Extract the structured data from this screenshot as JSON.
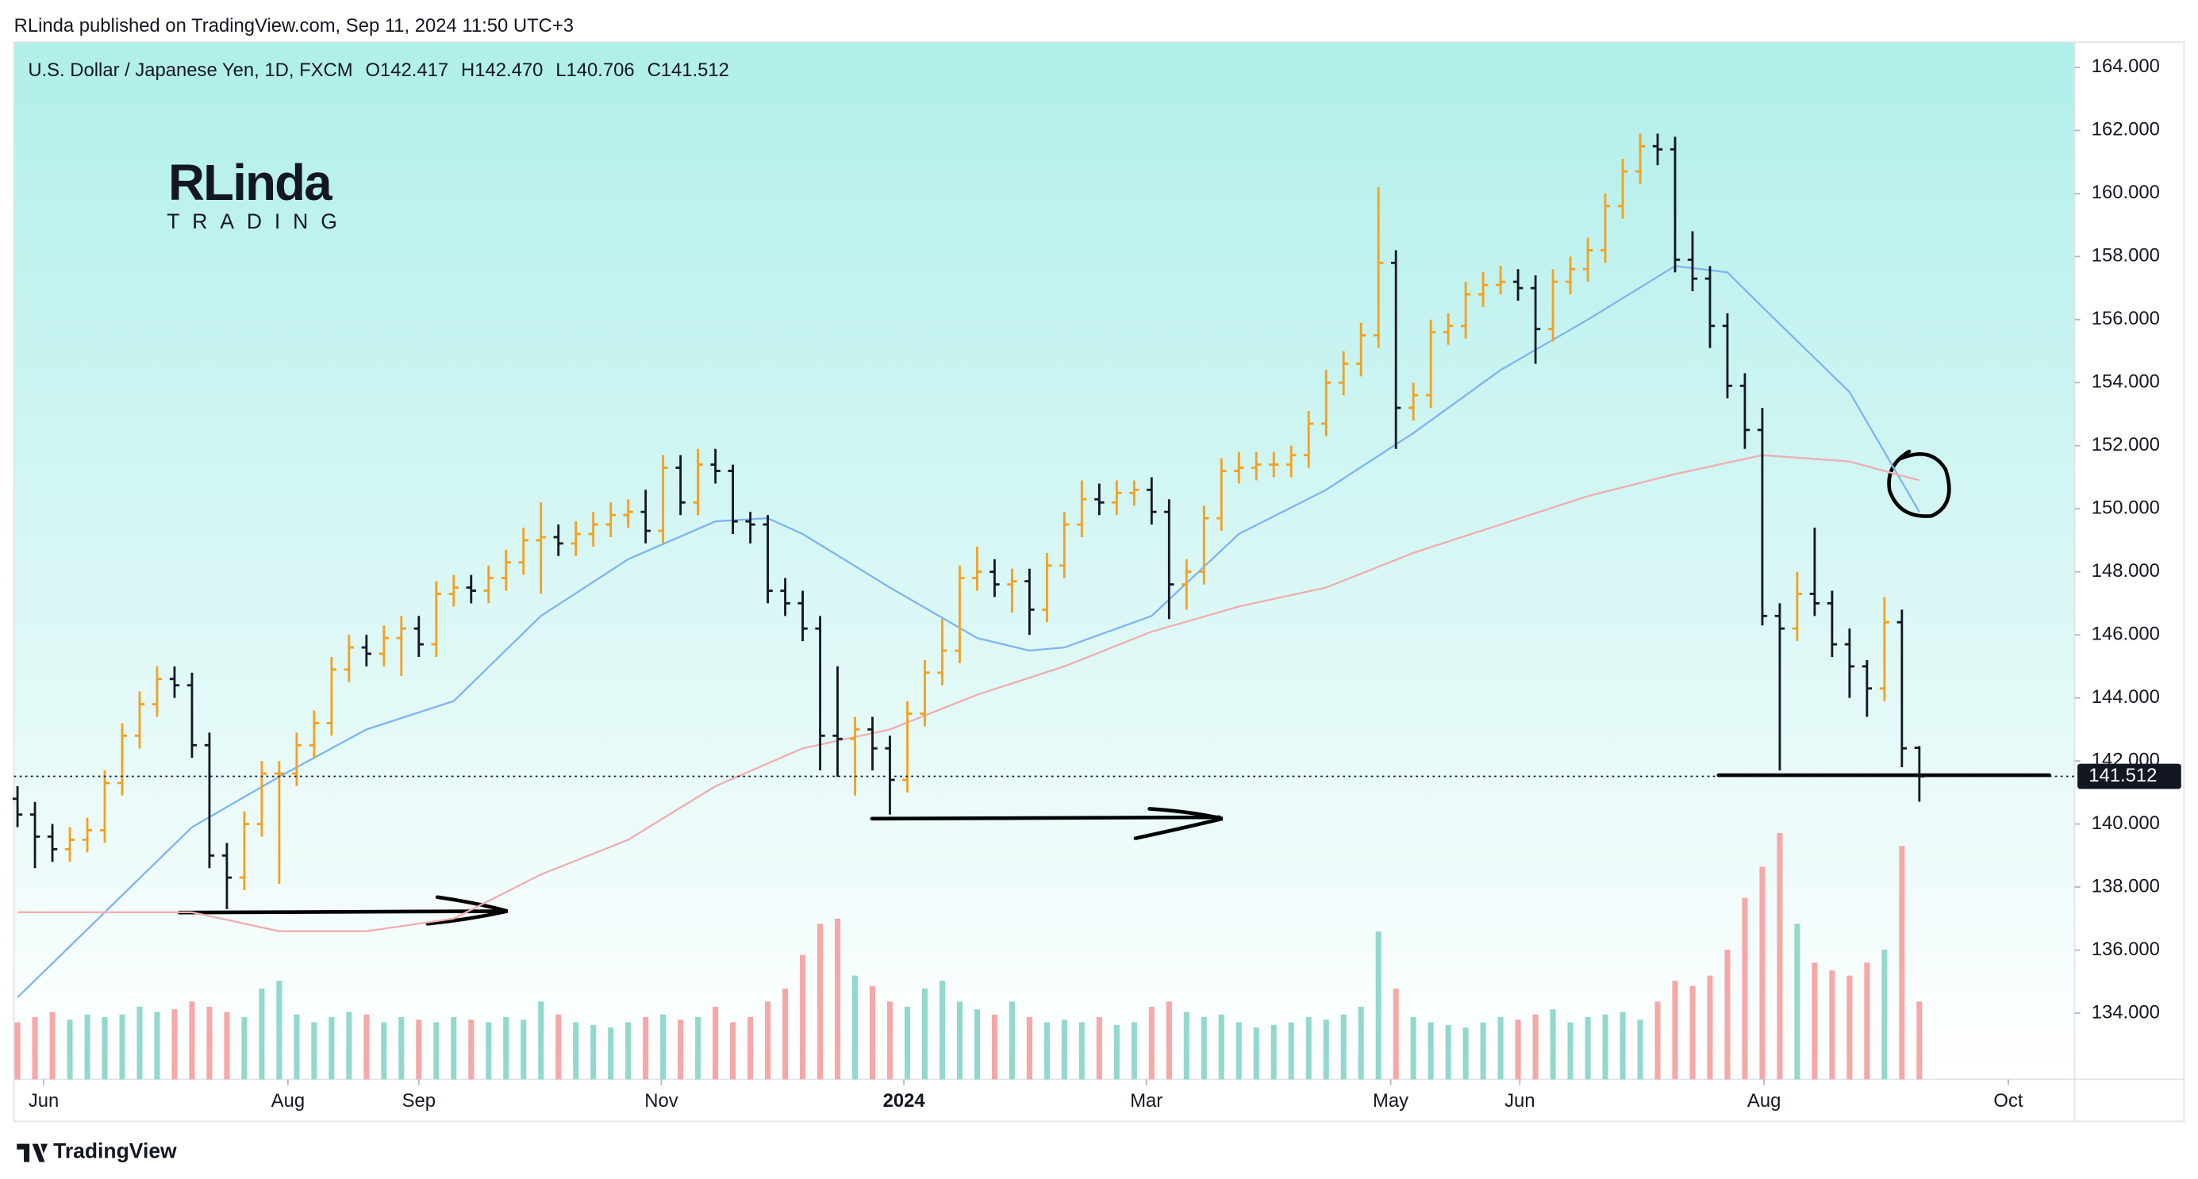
{
  "chart_data": {
    "type": "ohlc",
    "attribution": "RLinda published on TradingView.com, Sep 11, 2024 11:50 UTC+3",
    "symbol": "U.S. Dollar / Japanese Yen, 1D, FXCM",
    "legend_values": [
      "O142.417",
      "H142.470",
      "L140.706",
      "C141.512"
    ],
    "logo": [
      "RLinda",
      "TRADING"
    ],
    "footer": "TradingView",
    "up_color": "#f5a01f",
    "down_color": "#131722",
    "volume_up_color": "#93d8cc",
    "volume_down_color": "#f6a7a7",
    "xlim": [
      -0.2,
      117.9
    ],
    "xticks": [
      {
        "value": 1.5,
        "label": "Jun"
      },
      {
        "value": 15.5,
        "label": "Aug"
      },
      {
        "value": 23.0,
        "label": "Sep"
      },
      {
        "value": 36.9,
        "label": "Nov"
      },
      {
        "value": 50.8,
        "label": "2024"
      },
      {
        "value": 64.7,
        "label": "Mar"
      },
      {
        "value": 78.7,
        "label": "May"
      },
      {
        "value": 86.1,
        "label": "Jun"
      },
      {
        "value": 100.1,
        "label": "Aug"
      },
      {
        "value": 114.1,
        "label": "Oct"
      }
    ],
    "ylim": [
      131.9,
      164.8
    ],
    "yticks": [
      {
        "value": 134,
        "label": "134.000"
      },
      {
        "value": 136,
        "label": "136.000"
      },
      {
        "value": 138,
        "label": "138.000"
      },
      {
        "value": 140,
        "label": "140.000"
      },
      {
        "value": 142,
        "label": "142.000"
      },
      {
        "value": 144,
        "label": "144.000"
      },
      {
        "value": 146,
        "label": "146.000"
      },
      {
        "value": 148,
        "label": "148.000"
      },
      {
        "value": 150,
        "label": "150.000"
      },
      {
        "value": 152,
        "label": "152.000"
      },
      {
        "value": 154,
        "label": "154.000"
      },
      {
        "value": 156,
        "label": "156.000"
      },
      {
        "value": 158,
        "label": "158.000"
      },
      {
        "value": 160,
        "label": "160.000"
      },
      {
        "value": 162,
        "label": "162.000"
      },
      {
        "value": 164,
        "label": "164.000"
      }
    ],
    "last_price": {
      "value": 141.512,
      "label": "141.512"
    },
    "candles": [
      [
        140.8,
        141.2,
        139.9,
        140.3
      ],
      [
        140.3,
        140.7,
        138.6,
        139.6
      ],
      [
        139.6,
        140.0,
        138.8,
        139.2
      ],
      [
        139.2,
        139.9,
        138.8,
        139.5
      ],
      [
        139.5,
        140.2,
        139.1,
        139.8
      ],
      [
        139.8,
        141.7,
        139.4,
        141.3
      ],
      [
        141.3,
        143.2,
        140.9,
        142.8
      ],
      [
        142.8,
        144.2,
        142.4,
        143.8
      ],
      [
        143.8,
        145.0,
        143.4,
        144.6
      ],
      [
        144.6,
        145.0,
        144.0,
        144.4
      ],
      [
        144.4,
        144.8,
        142.1,
        142.5
      ],
      [
        142.5,
        142.9,
        138.6,
        139.0
      ],
      [
        139.0,
        139.4,
        137.3,
        138.3
      ],
      [
        138.3,
        140.4,
        137.9,
        140.0
      ],
      [
        140.0,
        142.0,
        139.6,
        141.6
      ],
      [
        141.6,
        142.0,
        138.1,
        141.6
      ],
      [
        141.6,
        142.9,
        141.2,
        142.5
      ],
      [
        142.5,
        143.6,
        142.1,
        143.2
      ],
      [
        143.2,
        145.3,
        142.8,
        144.9
      ],
      [
        144.9,
        146.0,
        144.5,
        145.6
      ],
      [
        145.6,
        146.0,
        145.0,
        145.4
      ],
      [
        145.4,
        146.3,
        145.0,
        145.9
      ],
      [
        145.9,
        146.6,
        144.7,
        146.2
      ],
      [
        146.2,
        146.6,
        145.3,
        145.7
      ],
      [
        145.7,
        147.7,
        145.3,
        147.3
      ],
      [
        147.3,
        147.9,
        146.9,
        147.5
      ],
      [
        147.5,
        147.9,
        147.0,
        147.4
      ],
      [
        147.4,
        148.2,
        147.0,
        147.8
      ],
      [
        147.8,
        148.7,
        147.4,
        148.3
      ],
      [
        148.3,
        149.4,
        147.9,
        149.0
      ],
      [
        149.0,
        150.2,
        147.3,
        149.1
      ],
      [
        149.1,
        149.5,
        148.5,
        148.9
      ],
      [
        148.9,
        149.6,
        148.5,
        149.2
      ],
      [
        149.2,
        149.9,
        148.8,
        149.5
      ],
      [
        149.5,
        150.2,
        149.1,
        149.8
      ],
      [
        149.8,
        150.3,
        149.4,
        149.9
      ],
      [
        149.9,
        150.6,
        148.9,
        149.3
      ],
      [
        149.3,
        151.7,
        148.9,
        151.3
      ],
      [
        151.3,
        151.7,
        149.8,
        150.2
      ],
      [
        150.2,
        151.9,
        149.8,
        151.4
      ],
      [
        151.4,
        151.9,
        150.8,
        151.2
      ],
      [
        151.2,
        151.4,
        149.2,
        149.6
      ],
      [
        149.6,
        149.9,
        148.9,
        149.5
      ],
      [
        149.5,
        149.8,
        147.0,
        147.4
      ],
      [
        147.4,
        147.8,
        146.6,
        147.0
      ],
      [
        147.0,
        147.4,
        145.8,
        146.2
      ],
      [
        146.2,
        146.6,
        141.7,
        142.8
      ],
      [
        142.8,
        145.0,
        141.5,
        142.7
      ],
      [
        142.7,
        143.4,
        140.9,
        143.0
      ],
      [
        143.0,
        143.4,
        141.7,
        142.4
      ],
      [
        142.4,
        142.8,
        140.3,
        141.4
      ],
      [
        141.4,
        143.9,
        141.0,
        143.5
      ],
      [
        143.5,
        145.2,
        143.1,
        144.8
      ],
      [
        144.8,
        146.5,
        144.4,
        145.5
      ],
      [
        145.5,
        148.2,
        145.1,
        147.8
      ],
      [
        147.8,
        148.8,
        147.4,
        148.0
      ],
      [
        148.0,
        148.4,
        147.2,
        147.6
      ],
      [
        147.6,
        148.1,
        146.7,
        147.7
      ],
      [
        147.7,
        148.1,
        146.0,
        146.8
      ],
      [
        146.8,
        148.6,
        146.4,
        148.2
      ],
      [
        148.2,
        149.9,
        147.8,
        149.5
      ],
      [
        149.5,
        150.9,
        149.1,
        150.3
      ],
      [
        150.3,
        150.8,
        149.8,
        150.2
      ],
      [
        150.2,
        150.9,
        149.8,
        150.5
      ],
      [
        150.5,
        150.9,
        150.1,
        150.6
      ],
      [
        150.6,
        151.0,
        149.5,
        149.9
      ],
      [
        149.9,
        150.3,
        146.5,
        147.6
      ],
      [
        147.6,
        148.4,
        146.8,
        148.0
      ],
      [
        148.0,
        150.1,
        147.6,
        149.7
      ],
      [
        149.7,
        151.6,
        149.3,
        151.2
      ],
      [
        151.2,
        151.8,
        150.8,
        151.3
      ],
      [
        151.3,
        151.8,
        150.9,
        151.4
      ],
      [
        151.4,
        151.8,
        151.0,
        151.4
      ],
      [
        151.4,
        152.0,
        151.0,
        151.7
      ],
      [
        151.7,
        153.1,
        151.3,
        152.7
      ],
      [
        152.7,
        154.4,
        152.3,
        154.0
      ],
      [
        154.0,
        155.0,
        153.6,
        154.6
      ],
      [
        154.6,
        155.9,
        154.2,
        155.5
      ],
      [
        155.5,
        160.2,
        155.1,
        157.8
      ],
      [
        157.8,
        158.2,
        151.9,
        153.2
      ],
      [
        153.2,
        154.0,
        152.8,
        153.6
      ],
      [
        153.6,
        156.0,
        153.2,
        155.6
      ],
      [
        155.6,
        156.2,
        155.2,
        155.8
      ],
      [
        155.8,
        157.2,
        155.4,
        156.8
      ],
      [
        156.8,
        157.5,
        156.4,
        157.1
      ],
      [
        157.1,
        157.7,
        156.8,
        157.2
      ],
      [
        157.2,
        157.6,
        156.6,
        157.0
      ],
      [
        157.0,
        157.4,
        154.6,
        155.7
      ],
      [
        155.7,
        157.6,
        155.3,
        157.2
      ],
      [
        157.2,
        158.0,
        156.8,
        157.6
      ],
      [
        157.6,
        158.6,
        157.2,
        158.2
      ],
      [
        158.2,
        160.0,
        157.8,
        159.6
      ],
      [
        159.6,
        161.1,
        159.2,
        160.7
      ],
      [
        160.7,
        161.9,
        160.3,
        161.5
      ],
      [
        161.5,
        161.9,
        160.9,
        161.4
      ],
      [
        161.4,
        161.8,
        157.5,
        157.9
      ],
      [
        157.9,
        158.8,
        156.9,
        157.3
      ],
      [
        157.3,
        157.7,
        155.1,
        155.8
      ],
      [
        155.8,
        156.2,
        153.5,
        153.9
      ],
      [
        153.9,
        154.3,
        151.9,
        152.5
      ],
      [
        152.5,
        153.2,
        146.3,
        146.6
      ],
      [
        146.6,
        147.0,
        141.7,
        146.2
      ],
      [
        146.2,
        148.0,
        145.8,
        147.3
      ],
      [
        147.3,
        149.4,
        146.6,
        147.0
      ],
      [
        147.0,
        147.4,
        145.3,
        145.7
      ],
      [
        145.7,
        146.2,
        144.0,
        145.0
      ],
      [
        145.0,
        145.2,
        143.4,
        144.3
      ],
      [
        144.3,
        147.2,
        143.9,
        146.4
      ],
      [
        146.4,
        146.8,
        141.8,
        142.4
      ],
      [
        142.417,
        142.47,
        140.706,
        141.512
      ]
    ],
    "volume_lim": [
      0,
      100
    ],
    "volume": [
      22,
      24,
      26,
      23,
      25,
      24,
      25,
      28,
      26,
      27,
      30,
      28,
      26,
      24,
      35,
      38,
      25,
      22,
      24,
      26,
      25,
      22,
      24,
      23,
      22,
      24,
      23,
      22,
      24,
      23,
      30,
      25,
      22,
      21,
      20,
      22,
      24,
      25,
      23,
      24,
      28,
      22,
      24,
      30,
      35,
      48,
      60,
      62,
      40,
      36,
      30,
      28,
      35,
      38,
      30,
      27,
      25,
      30,
      24,
      22,
      23,
      22,
      24,
      21,
      22,
      28,
      30,
      26,
      24,
      25,
      22,
      20,
      21,
      22,
      24,
      23,
      25,
      28,
      57,
      35,
      24,
      22,
      21,
      20,
      22,
      24,
      23,
      25,
      27,
      22,
      24,
      25,
      26,
      23,
      30,
      38,
      36,
      40,
      50,
      70,
      82,
      95,
      60,
      45,
      42,
      40,
      45,
      50,
      90,
      30
    ],
    "moving_averages": [
      {
        "color": "#7fb4ee",
        "x": [
          0,
          5,
          10,
          15,
          20,
          25,
          30,
          35,
          40,
          43,
          45,
          50,
          55,
          58,
          60,
          65,
          70,
          75,
          80,
          85,
          90,
          95,
          98,
          100,
          105,
          109
        ],
        "values": [
          134.5,
          137.2,
          139.9,
          141.5,
          143.0,
          143.9,
          146.6,
          148.4,
          149.6,
          149.7,
          149.2,
          147.5,
          145.9,
          145.5,
          145.6,
          146.6,
          149.2,
          150.6,
          152.4,
          154.4,
          156.0,
          157.7,
          157.5,
          156.4,
          153.7,
          149.9
        ]
      },
      {
        "color": "#eeaeb0",
        "x": [
          0,
          5,
          10,
          15,
          20,
          25,
          30,
          35,
          40,
          45,
          50,
          55,
          60,
          65,
          70,
          75,
          80,
          85,
          90,
          95,
          100,
          105,
          109
        ],
        "values": [
          137.2,
          137.2,
          137.2,
          136.6,
          136.6,
          137.0,
          138.4,
          139.5,
          141.2,
          142.4,
          143.0,
          144.1,
          145.0,
          146.1,
          146.9,
          147.5,
          148.6,
          149.5,
          150.4,
          151.1,
          151.7,
          151.5,
          150.9
        ]
      }
    ]
  }
}
